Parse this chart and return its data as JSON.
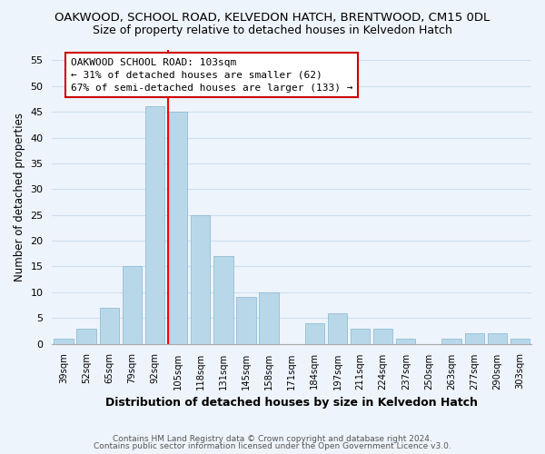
{
  "title": "OAKWOOD, SCHOOL ROAD, KELVEDON HATCH, BRENTWOOD, CM15 0DL",
  "subtitle": "Size of property relative to detached houses in Kelvedon Hatch",
  "xlabel": "Distribution of detached houses by size in Kelvedon Hatch",
  "ylabel": "Number of detached properties",
  "bar_labels": [
    "39sqm",
    "52sqm",
    "65sqm",
    "79sqm",
    "92sqm",
    "105sqm",
    "118sqm",
    "131sqm",
    "145sqm",
    "158sqm",
    "171sqm",
    "184sqm",
    "197sqm",
    "211sqm",
    "224sqm",
    "237sqm",
    "250sqm",
    "263sqm",
    "277sqm",
    "290sqm",
    "303sqm"
  ],
  "bar_values": [
    1,
    3,
    7,
    15,
    46,
    45,
    25,
    17,
    9,
    10,
    0,
    4,
    6,
    3,
    3,
    1,
    0,
    1,
    2,
    2,
    1
  ],
  "bar_color": "#b8d8ea",
  "bar_edge_color": "#92bdd4",
  "grid_color": "#cce0f0",
  "reference_line_bar_index": 5,
  "reference_line_color": "red",
  "annotation_title": "OAKWOOD SCHOOL ROAD: 103sqm",
  "annotation_line1": "← 31% of detached houses are smaller (62)",
  "annotation_line2": "67% of semi-detached houses are larger (133) →",
  "annotation_box_color": "white",
  "annotation_box_edge_color": "#cc0000",
  "ylim": [
    0,
    57
  ],
  "yticks": [
    0,
    5,
    10,
    15,
    20,
    25,
    30,
    35,
    40,
    45,
    50,
    55
  ],
  "footer1": "Contains HM Land Registry data © Crown copyright and database right 2024.",
  "footer2": "Contains public sector information licensed under the Open Government Licence v3.0.",
  "background_color": "#eef4fb"
}
